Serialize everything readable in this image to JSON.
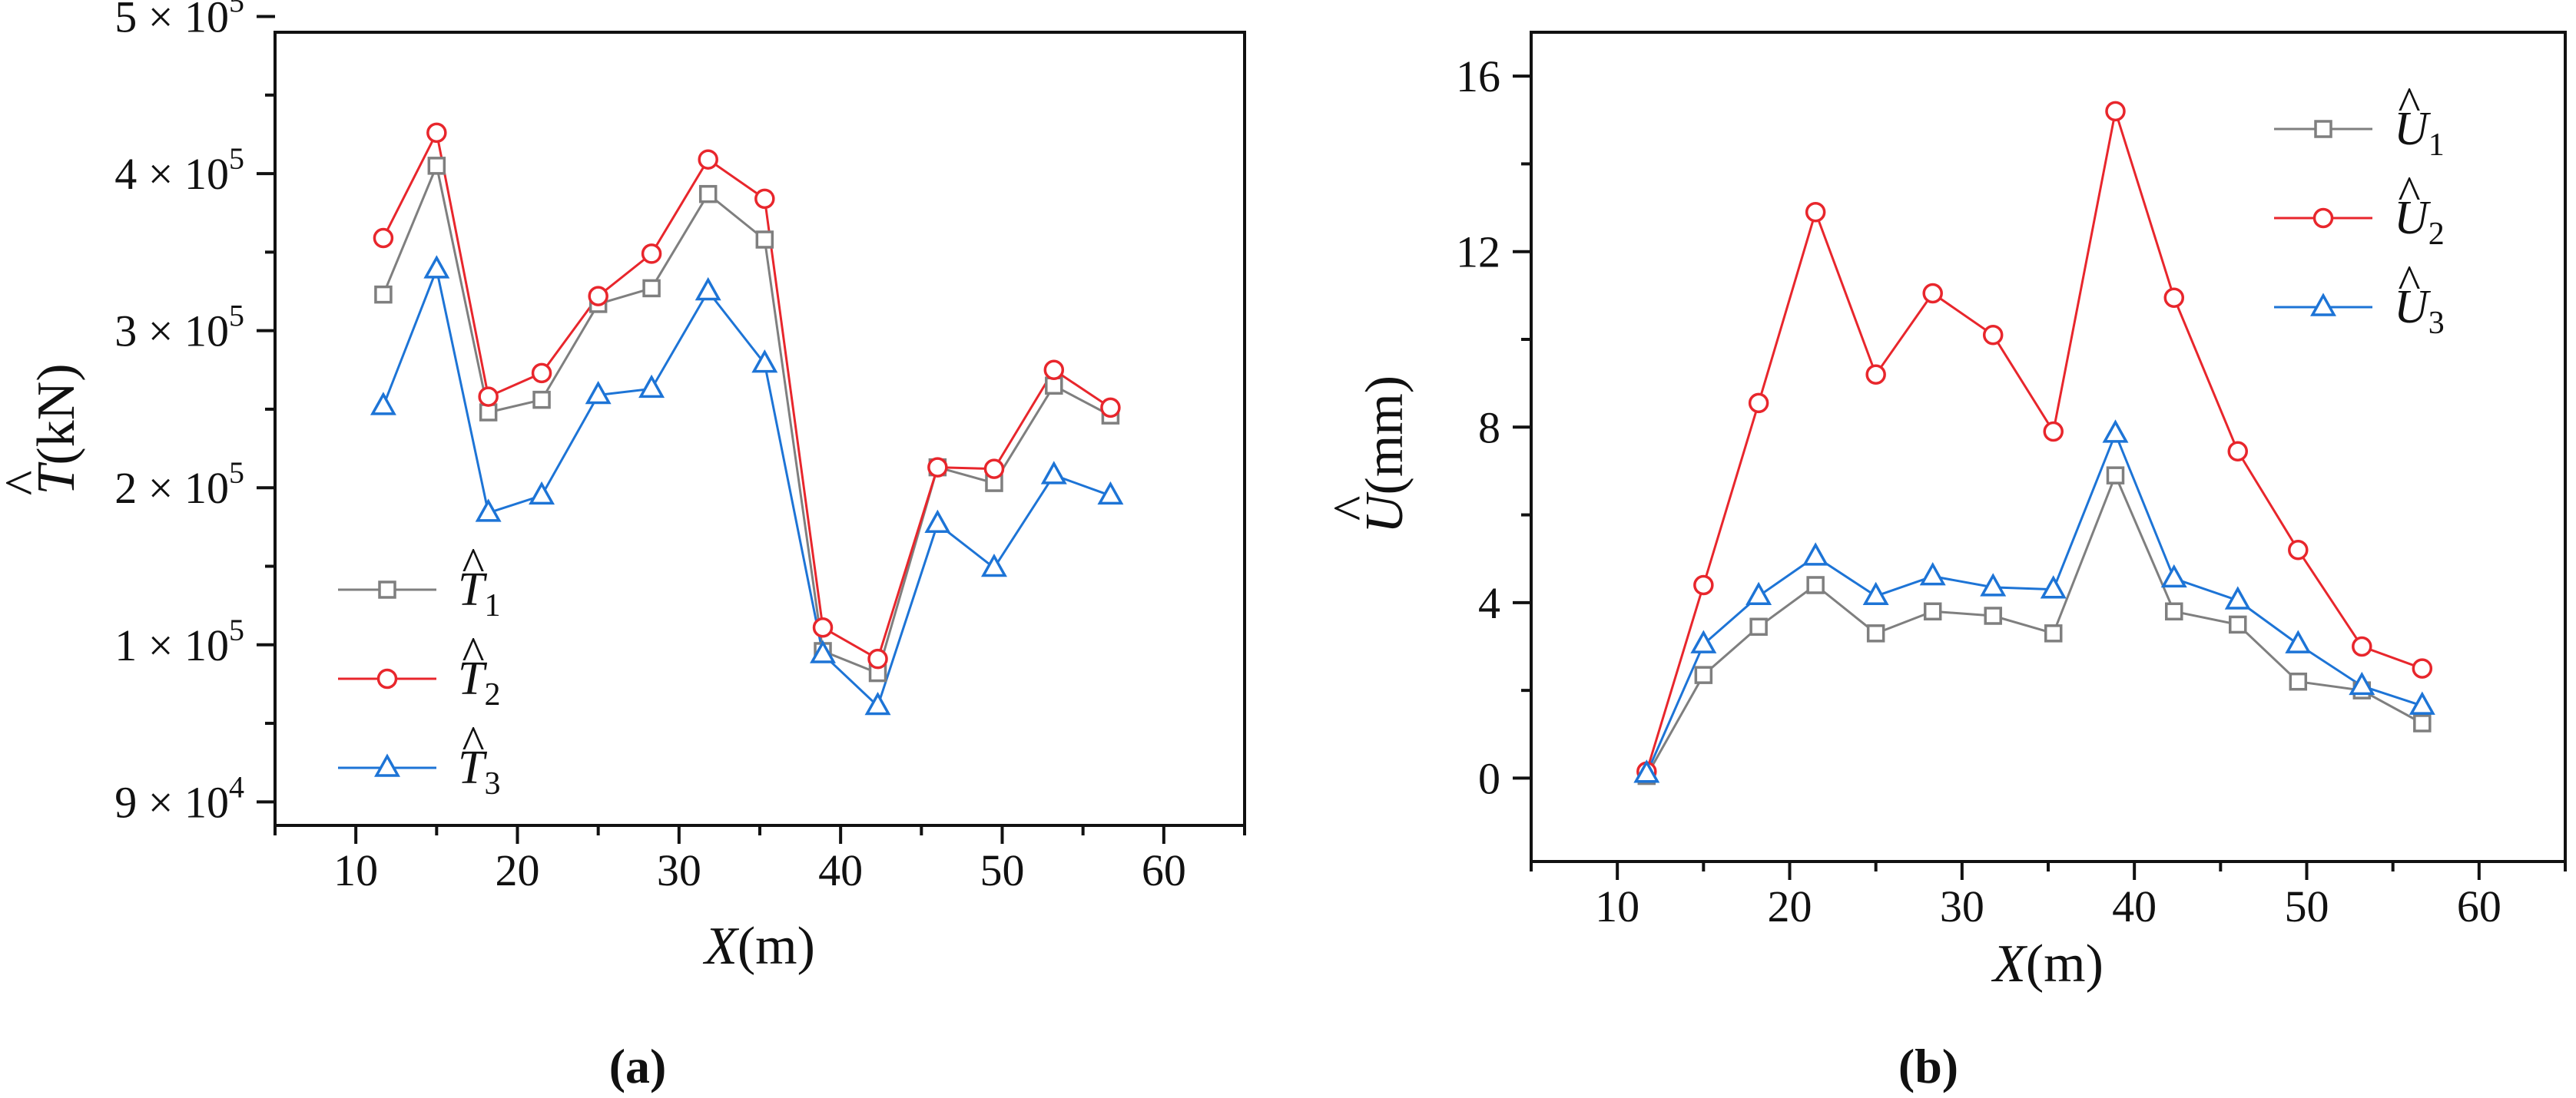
{
  "chart_data": [
    {
      "type": "line",
      "panel_label": "(a)",
      "panel_parts": [
        "(",
        "a",
        ")"
      ],
      "xlabel": "X(m)",
      "xlabel_parts": [
        "X",
        "(m)"
      ],
      "ylabel": "T̂(kN)",
      "ylabel_parts": [
        "T",
        "(kN)"
      ],
      "xlim": [
        5,
        65
      ],
      "ylim": [
        0.85,
        5.9
      ],
      "xticks": [
        10,
        20,
        30,
        40,
        50,
        60
      ],
      "yticks": [
        {
          "pos": 1,
          "mantissa": "9 × 10",
          "exp": "4"
        },
        {
          "pos": 2,
          "mantissa": "1 × 10",
          "exp": "5"
        },
        {
          "pos": 3,
          "mantissa": "2 × 10",
          "exp": "5"
        },
        {
          "pos": 4,
          "mantissa": "3 × 10",
          "exp": "5"
        },
        {
          "pos": 5,
          "mantissa": "4 × 10",
          "exp": "5"
        },
        {
          "pos": 6,
          "mantissa": "5 × 10",
          "exp": "5"
        }
      ],
      "x": [
        11.7,
        15.0,
        18.2,
        21.5,
        25.0,
        28.3,
        31.8,
        35.3,
        38.9,
        42.3,
        46.0,
        49.5,
        53.2,
        56.7
      ],
      "series": [
        {
          "name": "T̂1",
          "sym": "T",
          "sub": "1",
          "color": "#7f7f7f",
          "marker": "square",
          "values": [
            4.23,
            5.05,
            3.48,
            3.56,
            4.17,
            4.27,
            4.87,
            4.58,
            1.96,
            1.82,
            3.13,
            3.03,
            3.65,
            3.46
          ]
        },
        {
          "name": "T̂2",
          "sym": "T",
          "sub": "2",
          "color": "#e8262c",
          "marker": "circle",
          "values": [
            4.59,
            5.26,
            3.58,
            3.73,
            4.22,
            4.49,
            5.09,
            4.84,
            2.11,
            1.91,
            3.13,
            3.12,
            3.75,
            3.51
          ]
        },
        {
          "name": "T̂3",
          "sym": "T",
          "sub": "3",
          "color": "#1d74d6",
          "marker": "triangle",
          "values": [
            3.52,
            4.39,
            2.84,
            2.95,
            3.59,
            3.63,
            4.25,
            3.79,
            1.94,
            1.61,
            2.77,
            2.49,
            3.08,
            2.95
          ]
        }
      ]
    },
    {
      "type": "line",
      "panel_label": "(b)",
      "panel_parts": [
        "(",
        "b",
        ")"
      ],
      "xlabel": "X(m)",
      "xlabel_parts": [
        "X",
        "(m)"
      ],
      "ylabel": "Û(mm)",
      "ylabel_parts": [
        "U",
        "(mm)"
      ],
      "xlim": [
        5,
        65
      ],
      "ylim": [
        -1.9,
        17
      ],
      "xticks": [
        10,
        20,
        30,
        40,
        50,
        60
      ],
      "yticks": [
        {
          "pos": 0,
          "label": "0"
        },
        {
          "pos": 4,
          "label": "4"
        },
        {
          "pos": 8,
          "label": "8"
        },
        {
          "pos": 12,
          "label": "12"
        },
        {
          "pos": 16,
          "label": "16"
        }
      ],
      "x": [
        11.7,
        15.0,
        18.2,
        21.5,
        25.0,
        28.3,
        31.8,
        35.3,
        38.9,
        42.3,
        46.0,
        49.5,
        53.2,
        56.7
      ],
      "series": [
        {
          "name": "Û1",
          "sym": "U",
          "sub": "1",
          "color": "#7f7f7f",
          "marker": "square",
          "values": [
            0.05,
            2.35,
            3.45,
            4.4,
            3.3,
            3.8,
            3.7,
            3.3,
            6.9,
            3.8,
            3.5,
            2.2,
            2.0,
            1.25
          ]
        },
        {
          "name": "Û2",
          "sym": "U",
          "sub": "2",
          "color": "#e8262c",
          "marker": "circle",
          "values": [
            0.15,
            4.4,
            8.55,
            12.9,
            9.2,
            11.05,
            10.1,
            7.9,
            15.2,
            10.95,
            7.45,
            5.2,
            3.0,
            2.5
          ]
        },
        {
          "name": "Û3",
          "sym": "U",
          "sub": "3",
          "color": "#1d74d6",
          "marker": "triangle",
          "values": [
            0.1,
            3.05,
            4.15,
            5.05,
            4.15,
            4.6,
            4.35,
            4.3,
            7.85,
            4.55,
            4.05,
            3.05,
            2.1,
            1.65
          ]
        }
      ]
    }
  ]
}
